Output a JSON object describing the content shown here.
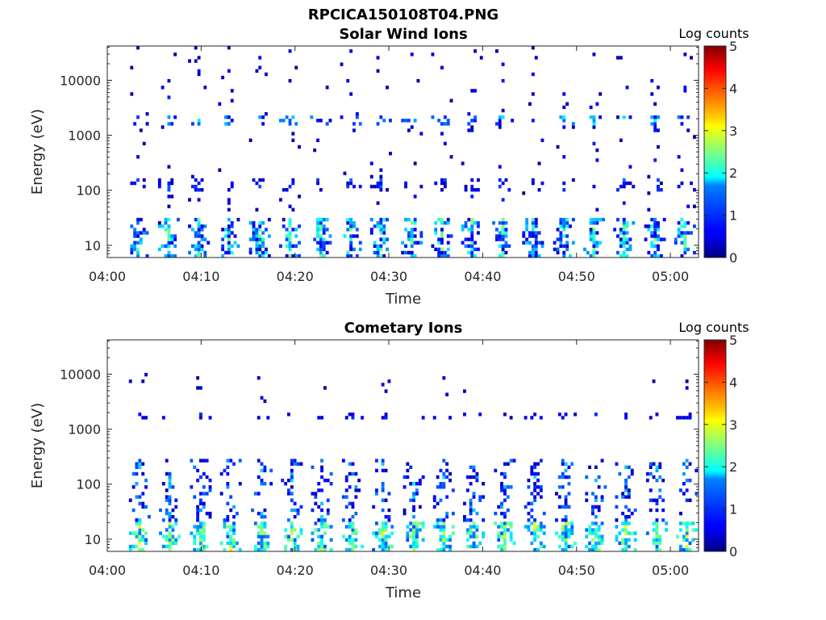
{
  "figure_title": "RPCICA150108T04.PNG",
  "chart_data": [
    {
      "type": "heatmap",
      "title": "Solar Wind Ions",
      "xlabel": "Time",
      "ylabel": "Energy (eV)",
      "x_ticks": [
        "04:00",
        "04:10",
        "04:20",
        "04:30",
        "04:40",
        "04:50",
        "05:00"
      ],
      "x_range_minutes": [
        0,
        63
      ],
      "y_ticks": [
        10,
        100,
        1000,
        10000
      ],
      "y_range": [
        6,
        42000
      ],
      "y_scale": "log",
      "colorbar": {
        "label": "Log counts",
        "ticks": [
          0,
          1,
          2,
          3,
          4,
          5
        ],
        "range": [
          0,
          5
        ],
        "colormap": "jet"
      },
      "sweep_columns_minutes": [
        3.1,
        6.4,
        9.6,
        12.8,
        16.1,
        19.3,
        22.6,
        25.8,
        29.0,
        32.3,
        35.5,
        38.7,
        42.0,
        45.2,
        48.5,
        51.7,
        54.9,
        58.2,
        61.4
      ],
      "bands": [
        {
          "e_min": 6,
          "e_max": 30,
          "level_min": 0.3,
          "level_max": 2.6,
          "density": 0.85
        },
        {
          "e_min": 90,
          "e_max": 160,
          "level_min": 0.2,
          "level_max": 1.2,
          "density": 0.35
        },
        {
          "e_min": 1500,
          "e_max": 2300,
          "level_min": 0.4,
          "level_max": 2.0,
          "density": 0.45
        },
        {
          "e_min": 40,
          "e_max": 40000,
          "level_min": 0.1,
          "level_max": 0.8,
          "density": 0.05
        }
      ]
    },
    {
      "type": "heatmap",
      "title": "Cometary Ions",
      "xlabel": "Time",
      "ylabel": "Energy (eV)",
      "x_ticks": [
        "04:00",
        "04:10",
        "04:20",
        "04:30",
        "04:40",
        "04:50",
        "05:00"
      ],
      "x_range_minutes": [
        0,
        63
      ],
      "y_ticks": [
        10,
        100,
        1000,
        10000
      ],
      "y_range": [
        6,
        42000
      ],
      "y_scale": "log",
      "colorbar": {
        "label": "Log counts",
        "ticks": [
          0,
          1,
          2,
          3,
          4,
          5
        ],
        "range": [
          0,
          5
        ],
        "colormap": "jet"
      },
      "sweep_columns_minutes": [
        3.3,
        6.5,
        9.8,
        13.0,
        16.3,
        19.5,
        22.7,
        26.0,
        29.2,
        32.5,
        35.7,
        38.9,
        42.2,
        45.4,
        48.7,
        51.9,
        55.1,
        58.4,
        61.6
      ],
      "bands": [
        {
          "e_min": 6,
          "e_max": 20,
          "level_min": 1.0,
          "level_max": 3.2,
          "density": 0.9
        },
        {
          "e_min": 20,
          "e_max": 280,
          "level_min": 0.2,
          "level_max": 1.8,
          "density": 0.4
        },
        {
          "e_min": 1600,
          "e_max": 2100,
          "level_min": 0.3,
          "level_max": 0.9,
          "density": 0.35
        },
        {
          "e_min": 2500,
          "e_max": 12000,
          "level_min": 0.1,
          "level_max": 0.5,
          "density": 0.02
        }
      ]
    }
  ]
}
